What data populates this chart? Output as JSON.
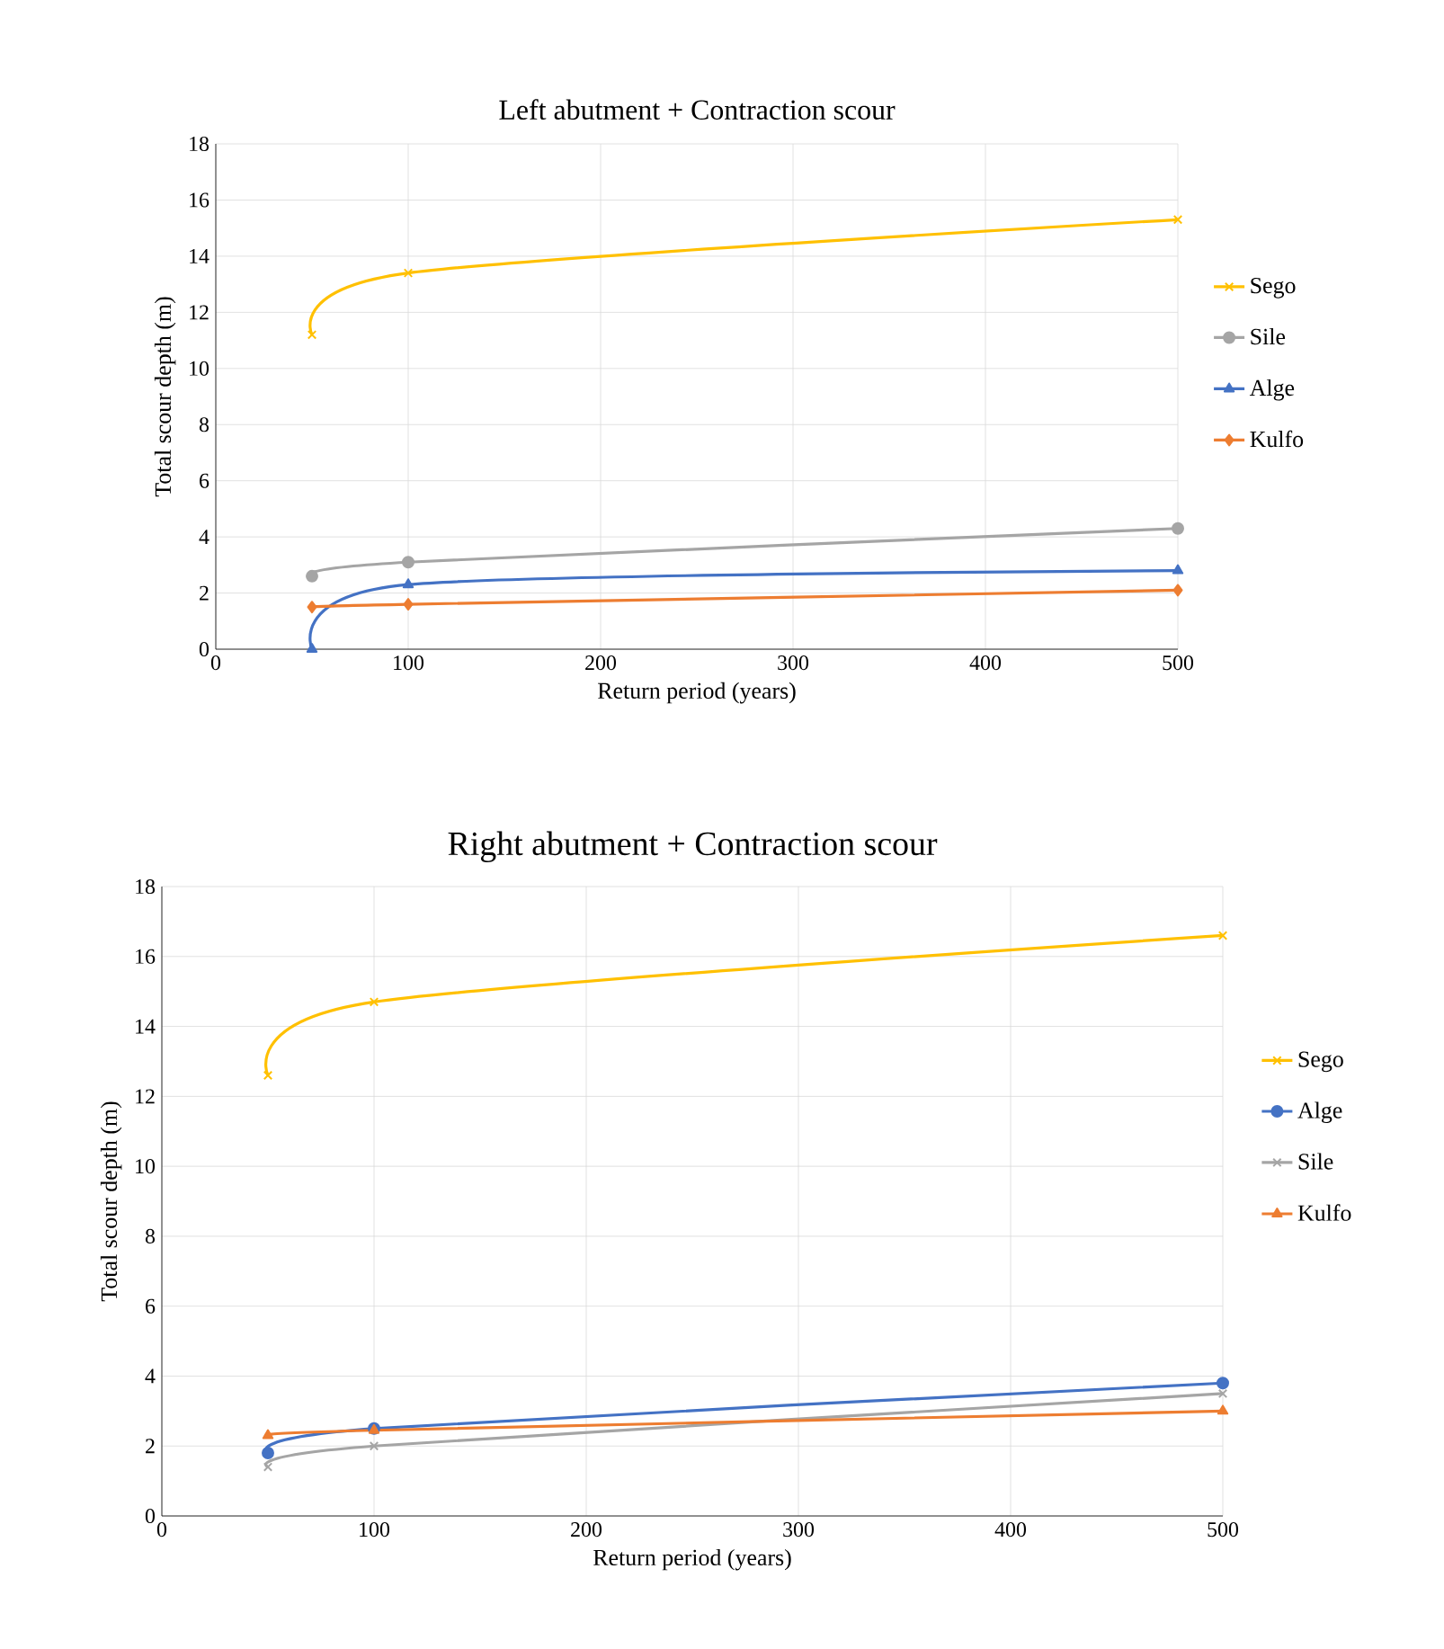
{
  "chart_data": [
    {
      "type": "line",
      "title": "Left abutment + Contraction scour",
      "xlabel": "Return period (years)",
      "ylabel": "Total scour depth (m)",
      "xlim": [
        0,
        500
      ],
      "ylim": [
        0,
        18
      ],
      "xticks": [
        0,
        100,
        200,
        300,
        400,
        500
      ],
      "yticks": [
        0,
        2,
        4,
        6,
        8,
        10,
        12,
        14,
        16,
        18
      ],
      "grid": true,
      "legend": "right",
      "x": [
        50,
        100,
        500
      ],
      "series": [
        {
          "name": "Sego",
          "color": "#ffc000",
          "marker": "cross",
          "values": [
            11.2,
            13.4,
            15.3
          ]
        },
        {
          "name": "Sile",
          "color": "#a5a5a5",
          "marker": "circle",
          "values": [
            2.6,
            3.1,
            4.3
          ]
        },
        {
          "name": "Alge",
          "color": "#4472c4",
          "marker": "triangle",
          "values": [
            0,
            2.3,
            2.8
          ]
        },
        {
          "name": "Kulfo",
          "color": "#ed7d31",
          "marker": "diamond",
          "values": [
            1.5,
            1.6,
            2.1
          ]
        }
      ]
    },
    {
      "type": "line",
      "title": "Right abutment + Contraction scour",
      "xlabel": "Return period (years)",
      "ylabel": "Total scour depth (m)",
      "xlim": [
        0,
        500
      ],
      "ylim": [
        0,
        18
      ],
      "xticks": [
        0,
        100,
        200,
        300,
        400,
        500
      ],
      "yticks": [
        0,
        2,
        4,
        6,
        8,
        10,
        12,
        14,
        16,
        18
      ],
      "grid": true,
      "legend": "right",
      "x": [
        50,
        100,
        500
      ],
      "series": [
        {
          "name": "Sego",
          "color": "#ffc000",
          "marker": "cross",
          "values": [
            12.6,
            14.7,
            16.6
          ]
        },
        {
          "name": "Alge",
          "color": "#4472c4",
          "marker": "circle",
          "values": [
            1.8,
            2.5,
            3.8
          ]
        },
        {
          "name": "Sile",
          "color": "#a5a5a5",
          "marker": "cross",
          "values": [
            1.4,
            2.0,
            3.5
          ]
        },
        {
          "name": "Kulfo",
          "color": "#ed7d31",
          "marker": "triangle",
          "values": [
            2.3,
            2.45,
            3.0
          ]
        }
      ]
    }
  ]
}
